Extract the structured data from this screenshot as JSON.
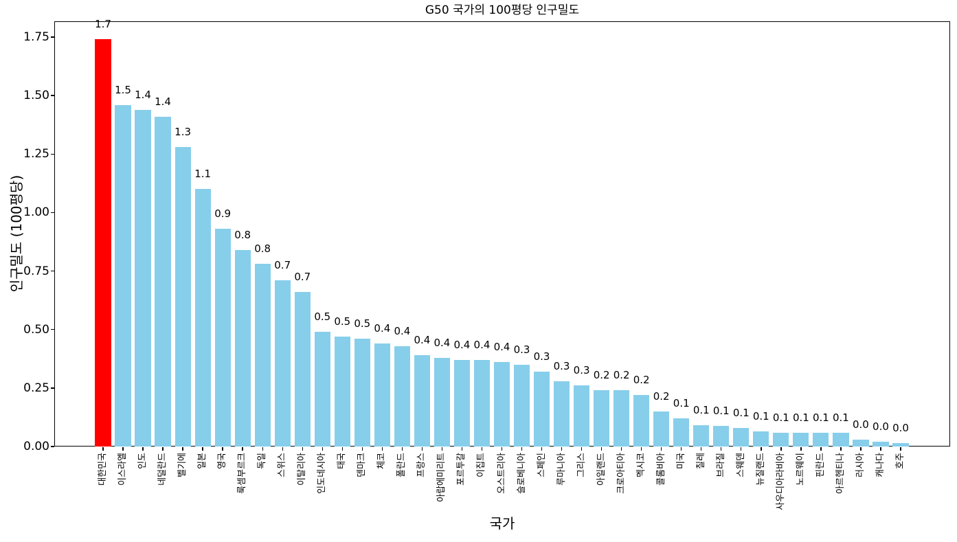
{
  "chart_data": {
    "type": "bar",
    "title": "G50 국가의 100평당 인구밀도",
    "xlabel": "국가",
    "ylabel": "인구밀도 (100평당)",
    "ylim": [
      0,
      1.82
    ],
    "grid": false,
    "legend": "none",
    "bar_color": "#87CEEB",
    "highlight_color": "#FF0000",
    "highlight_index": 0,
    "yticks": [
      0.0,
      0.25,
      0.5,
      0.75,
      1.0,
      1.25,
      1.5,
      1.75
    ],
    "ytick_labels": [
      "0.00",
      "0.25",
      "0.50",
      "0.75",
      "1.00",
      "1.25",
      "1.50",
      "1.75"
    ],
    "categories": [
      "대한민국",
      "이스라엘",
      "인도",
      "네덜란드",
      "벨기에",
      "일본",
      "영국",
      "룩셈부르크",
      "독일",
      "스위스",
      "이탈리아",
      "인도네시아",
      "태국",
      "덴마크",
      "체코",
      "폴란드",
      "프랑스",
      "아랍에미리트",
      "포르투갈",
      "이집트",
      "오스트리아",
      "슬로베니아",
      "스페인",
      "루마니아",
      "그리스",
      "아일랜드",
      "크로아티아",
      "멕시코",
      "콜롬비아",
      "미국",
      "칠레",
      "브라질",
      "스웨덴",
      "뉴질랜드",
      "사우디아라비아",
      "노르웨이",
      "핀란드",
      "아르헨티나",
      "러시아",
      "캐나다",
      "호주"
    ],
    "values": [
      1.74,
      1.46,
      1.44,
      1.41,
      1.28,
      1.1,
      0.93,
      0.84,
      0.78,
      0.71,
      0.66,
      0.49,
      0.47,
      0.46,
      0.44,
      0.43,
      0.39,
      0.38,
      0.37,
      0.37,
      0.36,
      0.35,
      0.32,
      0.28,
      0.26,
      0.24,
      0.24,
      0.22,
      0.15,
      0.12,
      0.092,
      0.088,
      0.08,
      0.065,
      0.06,
      0.06,
      0.06,
      0.06,
      0.03,
      0.02,
      0.015
    ],
    "bar_labels": [
      "1.7",
      "1.5",
      "1.4",
      "1.4",
      "1.3",
      "1.1",
      "0.9",
      "0.8",
      "0.8",
      "0.7",
      "0.7",
      "0.5",
      "0.5",
      "0.5",
      "0.4",
      "0.4",
      "0.4",
      "0.4",
      "0.4",
      "0.4",
      "0.4",
      "0.3",
      "0.3",
      "0.3",
      "0.3",
      "0.2",
      "0.2",
      "0.2",
      "0.2",
      "0.1",
      "0.1",
      "0.1",
      "0.1",
      "0.1",
      "0.1",
      "0.1",
      "0.1",
      "0.1",
      "0.0",
      "0.0",
      "0.0"
    ]
  }
}
